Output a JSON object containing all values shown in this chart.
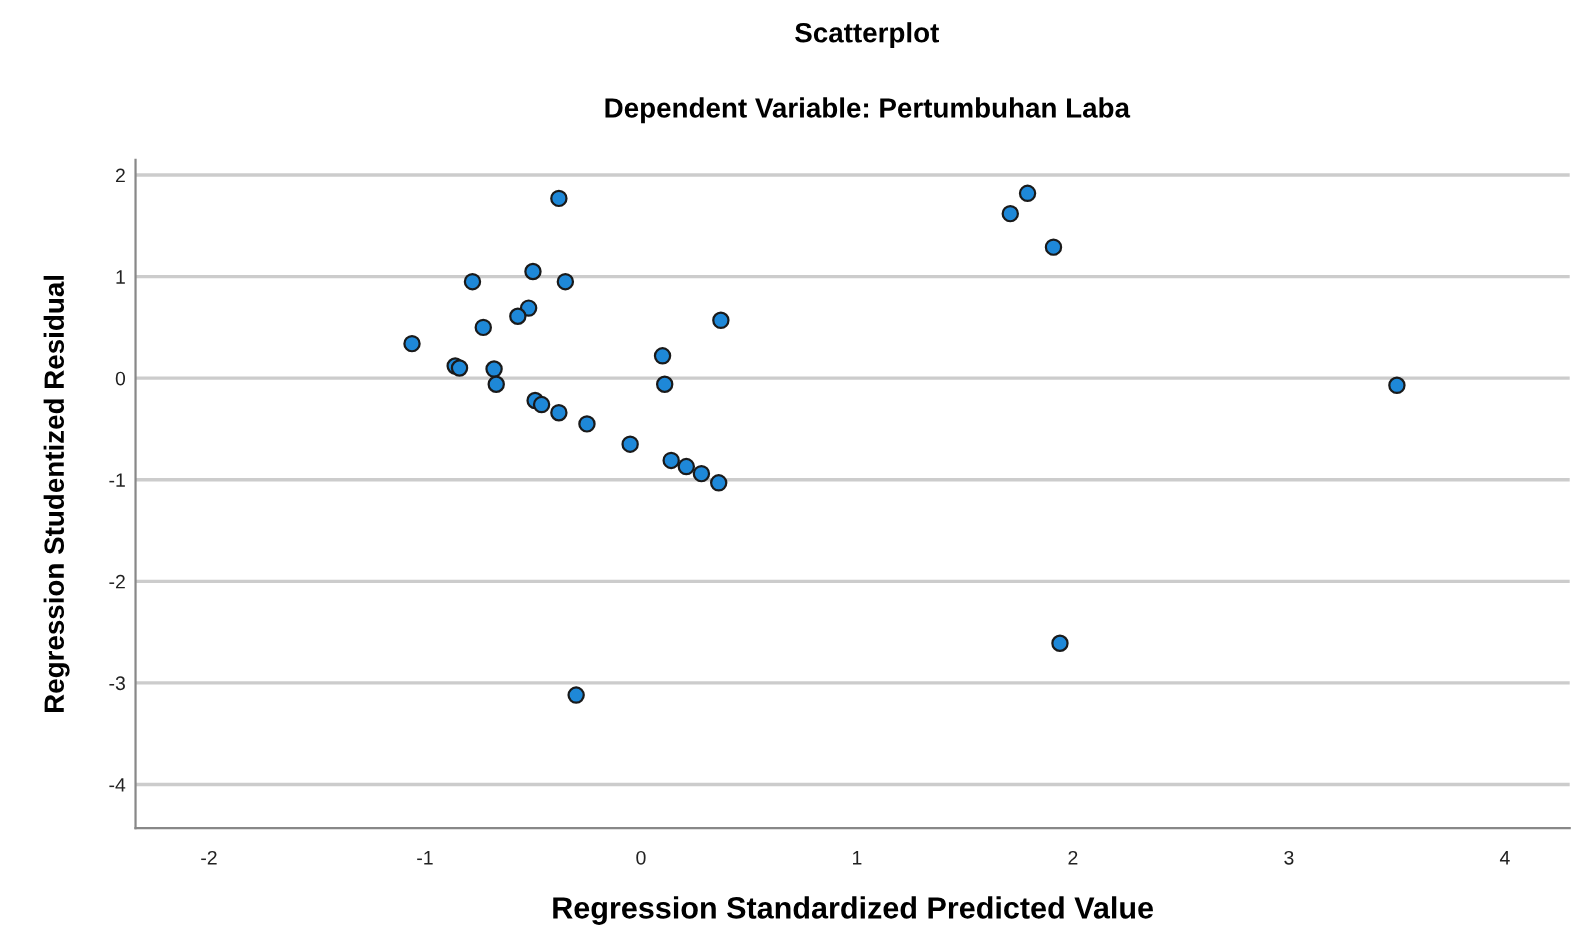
{
  "chart_data": {
    "type": "scatter",
    "title": "Scatterplot",
    "subtitle": "Dependent Variable: Pertumbuhan Laba",
    "xlabel": "Regression Standardized Predicted Value",
    "ylabel": "Regression Studentized Residual",
    "series": [
      {
        "color": "#1e88d8",
        "x": [
          -0.38,
          -0.5,
          -0.35,
          -0.78,
          -0.52,
          -0.57,
          -0.73,
          0.37,
          -1.06,
          0.1,
          -0.86,
          -0.84,
          -0.68,
          -0.67,
          0.11,
          -0.49,
          -0.46,
          -0.38,
          -0.25,
          -0.05,
          0.14,
          0.21,
          0.28,
          0.36,
          -0.3,
          1.79,
          1.71,
          1.91,
          3.5,
          1.94
        ],
        "values": [
          1.77,
          1.05,
          0.95,
          0.95,
          0.69,
          0.61,
          0.5,
          0.57,
          0.34,
          0.22,
          0.12,
          0.1,
          0.09,
          -0.06,
          -0.06,
          -0.22,
          -0.26,
          -0.34,
          -0.45,
          -0.65,
          -0.81,
          -0.87,
          -0.94,
          -1.03,
          -3.12,
          1.82,
          1.62,
          1.29,
          -0.07,
          -2.61
        ]
      }
    ],
    "xlim": [
      -2.34,
      4.3
    ],
    "ylim": [
      -4.43,
      2.15
    ],
    "xticks": [
      -2,
      -1,
      0,
      1,
      2,
      3,
      4
    ],
    "yticks": [
      -4,
      -3,
      -2,
      -1,
      0,
      1,
      2
    ],
    "grid": "y",
    "marker": "circle",
    "legend": false
  }
}
